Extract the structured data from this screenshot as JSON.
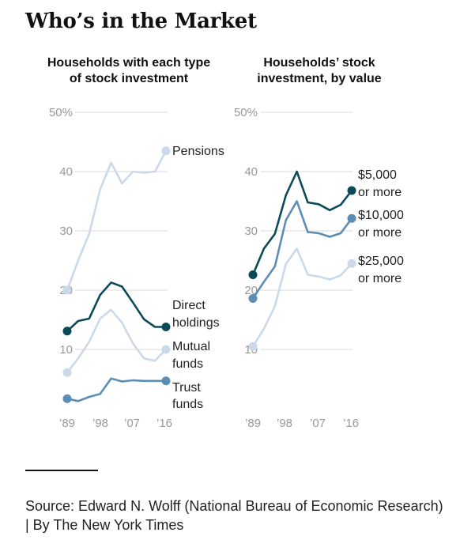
{
  "title": "Who’s in the Market",
  "source": "Source: Edward N. Wolff (National Bureau of Economic Research) | By The New York Times",
  "colors": {
    "dark": "#0c4a5a",
    "mid": "#5b8db5",
    "light": "#ccd9e8",
    "grid": "#d9d9d9",
    "tick": "#999999"
  },
  "chart_data": [
    {
      "type": "line",
      "title": "Households with each type of stock investment",
      "yticks": [
        "50%",
        "40",
        "30",
        "20",
        "10"
      ],
      "ytick_values": [
        50,
        40,
        30,
        20,
        10
      ],
      "xticks": [
        "’89",
        "’98",
        "’07",
        "’16"
      ],
      "xtick_values": [
        1989,
        1998,
        2007,
        2016
      ],
      "x": [
        1989,
        1992,
        1995,
        1998,
        2001,
        2004,
        2007,
        2010,
        2013,
        2016
      ],
      "ylim": [
        0,
        50
      ],
      "series": [
        {
          "name": "Pensions",
          "label_lines": [
            "Pensions"
          ],
          "color": "light",
          "values": [
            20,
            25,
            29.5,
            37,
            41.5,
            38,
            40,
            39.8,
            40,
            43.5
          ]
        },
        {
          "name": "Direct holdings",
          "label_lines": [
            "Direct",
            "holdings"
          ],
          "color": "dark",
          "values": [
            13.1,
            14.8,
            15.2,
            19.2,
            21.3,
            20.6,
            17.9,
            15.1,
            13.8,
            13.8
          ]
        },
        {
          "name": "Mutual funds",
          "label_lines": [
            "Mutual",
            "funds"
          ],
          "color": "light",
          "values": [
            6.1,
            8.5,
            11.3,
            15.2,
            16.7,
            14.5,
            11,
            8.5,
            8.1,
            10
          ]
        },
        {
          "name": "Trust funds",
          "label_lines": [
            "Trust",
            "funds"
          ],
          "color": "mid",
          "values": [
            1.7,
            1.3,
            2,
            2.5,
            5.1,
            4.6,
            4.8,
            4.7,
            4.7,
            4.7
          ]
        }
      ]
    },
    {
      "type": "line",
      "title": "Households’ stock investment, by value",
      "yticks": [
        "50%",
        "40",
        "30",
        "20",
        "10"
      ],
      "ytick_values": [
        50,
        40,
        30,
        20,
        10
      ],
      "xticks": [
        "’89",
        "’98",
        "’07",
        "’16"
      ],
      "xtick_values": [
        1989,
        1998,
        2007,
        2016
      ],
      "x": [
        1989,
        1992,
        1995,
        1998,
        2001,
        2004,
        2007,
        2010,
        2013,
        2016
      ],
      "ylim": [
        0,
        50
      ],
      "series": [
        {
          "name": "$5,000 or more",
          "label_lines": [
            "$5,000",
            "or more"
          ],
          "color": "dark",
          "values": [
            22.6,
            27,
            29.5,
            36,
            40,
            34.8,
            34.5,
            33.5,
            34.4,
            36.8
          ]
        },
        {
          "name": "$10,000 or more",
          "label_lines": [
            "$10,000",
            "or more"
          ],
          "color": "mid",
          "values": [
            18.6,
            21.4,
            24,
            31.8,
            35,
            29.8,
            29.6,
            29,
            29.6,
            32.1
          ]
        },
        {
          "name": "$25,000 or more",
          "label_lines": [
            "$25,000",
            "or more"
          ],
          "color": "light",
          "values": [
            10.5,
            13.5,
            17.3,
            24.4,
            27,
            22.6,
            22.3,
            21.8,
            22.5,
            24.5
          ]
        }
      ]
    }
  ]
}
